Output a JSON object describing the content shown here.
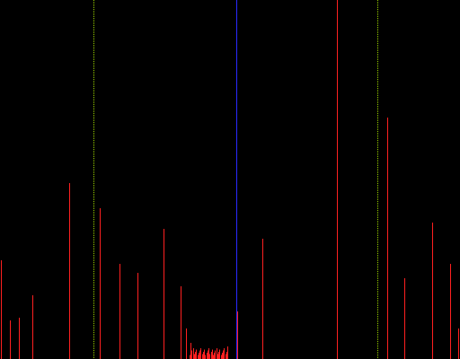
{
  "colors": {
    "background": "#000000",
    "peak": "#ff2020",
    "cursor_center": "#2a2aff",
    "cursor_bound": "#9ad000"
  },
  "display": {
    "type": "spectrum-peak-view",
    "axes_visible": false,
    "labels_visible": false,
    "grid": false
  },
  "markers": [
    {
      "kind": "bound-cursor",
      "position_fraction": 0.203,
      "style": "dotted"
    },
    {
      "kind": "center-cursor",
      "position_fraction": 0.514,
      "style": "solid"
    },
    {
      "kind": "bound-cursor",
      "position_fraction": 0.821,
      "style": "dotted"
    }
  ],
  "peaks": [
    {
      "position_fraction": 0.001,
      "level_fraction": 0.275
    },
    {
      "position_fraction": 0.021,
      "level_fraction": 0.108
    },
    {
      "position_fraction": 0.041,
      "level_fraction": 0.115
    },
    {
      "position_fraction": 0.07,
      "level_fraction": 0.178
    },
    {
      "position_fraction": 0.15,
      "level_fraction": 0.49
    },
    {
      "position_fraction": 0.217,
      "level_fraction": 0.42
    },
    {
      "position_fraction": 0.26,
      "level_fraction": 0.265
    },
    {
      "position_fraction": 0.299,
      "level_fraction": 0.24
    },
    {
      "position_fraction": 0.357,
      "level_fraction": 0.363
    },
    {
      "position_fraction": 0.393,
      "level_fraction": 0.203
    },
    {
      "position_fraction": 0.406,
      "level_fraction": 0.085
    },
    {
      "position_fraction": 0.414,
      "level_fraction": 0.045
    },
    {
      "position_fraction": 0.496,
      "level_fraction": 0.035
    },
    {
      "position_fraction": 0.516,
      "level_fraction": 0.133
    },
    {
      "position_fraction": 0.572,
      "level_fraction": 0.335
    },
    {
      "position_fraction": 0.733,
      "level_fraction": 1.0
    },
    {
      "position_fraction": 0.843,
      "level_fraction": 0.673
    },
    {
      "position_fraction": 0.88,
      "level_fraction": 0.225
    },
    {
      "position_fraction": 0.941,
      "level_fraction": 0.38
    },
    {
      "position_fraction": 0.981,
      "level_fraction": 0.265
    },
    {
      "position_fraction": 0.999,
      "level_fraction": 0.085
    }
  ],
  "noise_cluster": {
    "start_fraction": 0.412,
    "end_fraction": 0.492,
    "level_fraction": 0.022,
    "line_count": 34
  }
}
